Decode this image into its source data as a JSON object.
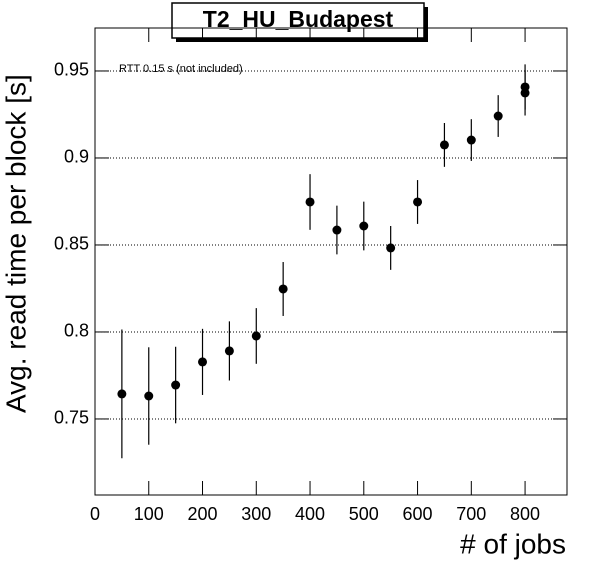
{
  "chart_data": {
    "type": "scatter",
    "title": "T2_HU_Budapest",
    "annotation": "RTT 0.15 s (not included)",
    "x_label": "# of jobs",
    "y_label": "Avg. read time per block [s]",
    "x": [
      50,
      100,
      150,
      200,
      250,
      300,
      350,
      400,
      450,
      500,
      550,
      600,
      650,
      700,
      750,
      800,
      800
    ],
    "y": [
      0.7644,
      0.7632,
      0.7695,
      0.7828,
      0.7891,
      0.7977,
      0.8247,
      0.8747,
      0.8586,
      0.8609,
      0.8483,
      0.8747,
      0.9075,
      0.9103,
      0.9241,
      0.9408,
      0.9374
    ],
    "yerr": [
      0.037,
      0.028,
      0.022,
      0.019,
      0.017,
      0.016,
      0.0155,
      0.016,
      0.014,
      0.014,
      0.0126,
      0.0126,
      0.0126,
      0.012,
      0.012,
      0.013,
      0.013
    ],
    "color": "#000000",
    "xlim": [
      0,
      878
    ],
    "xticks": [
      0,
      100,
      200,
      300,
      400,
      500,
      600,
      700,
      800
    ],
    "ylim": [
      0.7063,
      0.9747
    ],
    "yticks": [
      0.75,
      0.8,
      0.85,
      0.9,
      0.95
    ],
    "grid": true
  }
}
